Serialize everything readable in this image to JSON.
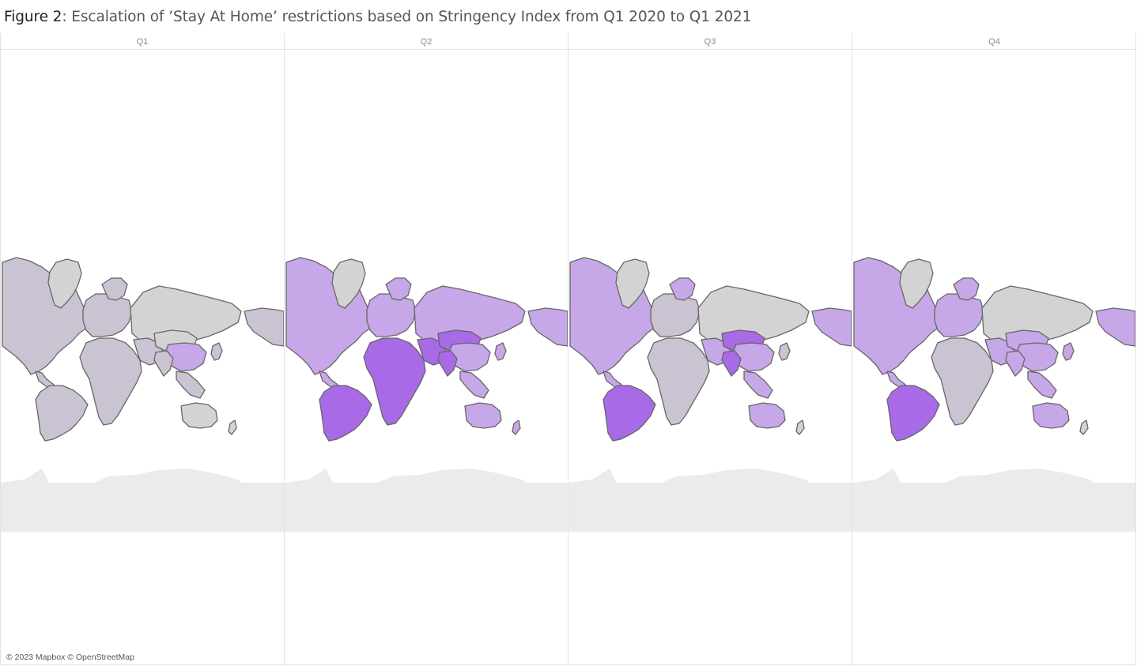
{
  "title": {
    "figure_label": "Figure 2",
    "text": ": Escalation of  ’Stay At Home’ restrictions based on Stringency Index from Q1 2020 to Q1 2021"
  },
  "panels": [
    {
      "label": "Q1",
      "level_shade": "low"
    },
    {
      "label": "Q2",
      "level_shade": "high"
    },
    {
      "label": "Q3",
      "level_shade": "mid"
    },
    {
      "label": "Q4",
      "level_shade": "mid"
    }
  ],
  "colors": {
    "no_data": "#d3d3d3",
    "level_1": "#c9c3d2",
    "level_2": "#c6a7e8",
    "level_3": "#a86ae6",
    "border": "#666666",
    "antarctica": "#ebebeb"
  },
  "attribution": "© 2023 Mapbox © OpenStreetMap"
}
